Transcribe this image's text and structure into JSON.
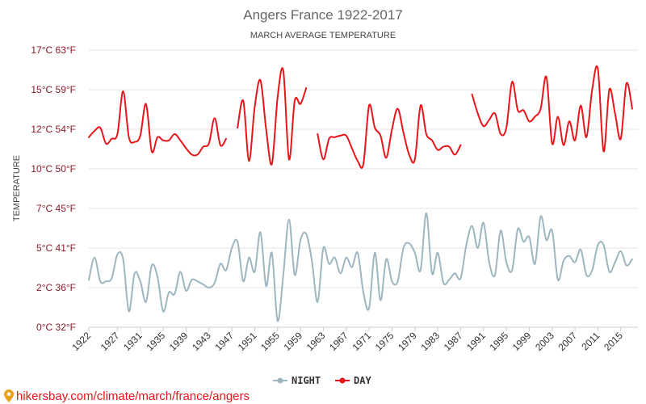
{
  "chart_data": {
    "type": "line",
    "title": "Angers France 1922-2017",
    "subtitle": "MARCH AVERAGE TEMPERATURE",
    "ylabel": "TEMPERATURE",
    "xlabel": "",
    "xlim": [
      1922,
      2018
    ],
    "ylim": [
      0,
      17.5
    ],
    "grid": true,
    "legend_position": "bottom-center",
    "y_ticks": [
      {
        "value": 0,
        "label": "0°C 32°F"
      },
      {
        "value": 2.5,
        "label": "2°C 36°F"
      },
      {
        "value": 5,
        "label": "5°C 41°F"
      },
      {
        "value": 7.5,
        "label": "7°C 45°F"
      },
      {
        "value": 10,
        "label": "10°C 50°F"
      },
      {
        "value": 12.5,
        "label": "12°C 54°F"
      },
      {
        "value": 15,
        "label": "15°C 59°F"
      },
      {
        "value": 17.5,
        "label": "17°C 63°F"
      }
    ],
    "x_ticks": [
      1922,
      1927,
      1931,
      1935,
      1939,
      1943,
      1947,
      1951,
      1955,
      1959,
      1963,
      1967,
      1971,
      1975,
      1979,
      1983,
      1987,
      1991,
      1995,
      1999,
      2003,
      2007,
      2011,
      2015
    ],
    "series": [
      {
        "name": "NIGHT",
        "color": "#9eb6c0",
        "points": [
          [
            1922,
            3.0
          ],
          [
            1923,
            4.4
          ],
          [
            1924,
            2.9
          ],
          [
            1925,
            2.9
          ],
          [
            1926,
            3.1
          ],
          [
            1927,
            4.6
          ],
          [
            1928,
            4.3
          ],
          [
            1929,
            1.0
          ],
          [
            1930,
            3.4
          ],
          [
            1931,
            2.9
          ],
          [
            1932,
            1.6
          ],
          [
            1933,
            3.9
          ],
          [
            1934,
            3.2
          ],
          [
            1935,
            1.0
          ],
          [
            1936,
            2.2
          ],
          [
            1937,
            2.1
          ],
          [
            1938,
            3.5
          ],
          [
            1939,
            2.3
          ],
          [
            1940,
            3.0
          ],
          [
            1941,
            2.9
          ],
          [
            1942,
            2.7
          ],
          [
            1943,
            2.5
          ],
          [
            1944,
            2.8
          ],
          [
            1945,
            4.0
          ],
          [
            1946,
            3.6
          ],
          [
            1947,
            5.0
          ],
          [
            1948,
            5.4
          ],
          [
            1949,
            2.9
          ],
          [
            1950,
            4.4
          ],
          [
            1951,
            3.5
          ],
          [
            1952,
            6.0
          ],
          [
            1953,
            2.6
          ],
          [
            1954,
            4.7
          ],
          [
            1955,
            0.4
          ],
          [
            1956,
            3.3
          ],
          [
            1957,
            6.8
          ],
          [
            1958,
            3.3
          ],
          [
            1959,
            5.5
          ],
          [
            1960,
            5.9
          ],
          [
            1961,
            4.2
          ],
          [
            1962,
            1.6
          ],
          [
            1963,
            5.0
          ],
          [
            1964,
            4.0
          ],
          [
            1965,
            4.4
          ],
          [
            1966,
            3.4
          ],
          [
            1967,
            4.4
          ],
          [
            1968,
            3.8
          ],
          [
            1969,
            4.7
          ],
          [
            1970,
            2.2
          ],
          [
            1971,
            1.2
          ],
          [
            1972,
            4.7
          ],
          [
            1973,
            1.7
          ],
          [
            1974,
            4.3
          ],
          [
            1975,
            2.9
          ],
          [
            1976,
            2.9
          ],
          [
            1977,
            5.0
          ],
          [
            1978,
            5.3
          ],
          [
            1979,
            4.7
          ],
          [
            1980,
            3.6
          ],
          [
            1981,
            7.2
          ],
          [
            1982,
            3.4
          ],
          [
            1983,
            4.7
          ],
          [
            1984,
            2.8
          ],
          [
            1985,
            3.0
          ],
          [
            1986,
            3.4
          ],
          [
            1987,
            3.1
          ],
          [
            1988,
            5.2
          ],
          [
            1989,
            6.4
          ],
          [
            1990,
            5.0
          ],
          [
            1991,
            6.6
          ],
          [
            1992,
            4.1
          ],
          [
            1993,
            3.3
          ],
          [
            1994,
            6.1
          ],
          [
            1995,
            4.1
          ],
          [
            1996,
            3.6
          ],
          [
            1997,
            6.2
          ],
          [
            1998,
            5.4
          ],
          [
            1999,
            5.7
          ],
          [
            2000,
            4.0
          ],
          [
            2001,
            7.0
          ],
          [
            2002,
            5.5
          ],
          [
            2003,
            6.1
          ],
          [
            2004,
            3.0
          ],
          [
            2005,
            4.2
          ],
          [
            2006,
            4.5
          ],
          [
            2007,
            4.1
          ],
          [
            2008,
            4.9
          ],
          [
            2009,
            3.3
          ],
          [
            2010,
            3.6
          ],
          [
            2011,
            5.2
          ],
          [
            2012,
            5.2
          ],
          [
            2013,
            3.5
          ],
          [
            2014,
            4.1
          ],
          [
            2015,
            4.8
          ],
          [
            2016,
            3.9
          ],
          [
            2017,
            4.3
          ]
        ]
      },
      {
        "name": "DAY",
        "color": "#e8161b",
        "points": [
          [
            1922,
            12.0
          ],
          [
            1923,
            12.4
          ],
          [
            1924,
            12.6
          ],
          [
            1925,
            11.6
          ],
          [
            1926,
            11.9
          ],
          [
            1927,
            12.2
          ],
          [
            1928,
            14.9
          ],
          [
            1929,
            12.0
          ],
          [
            1930,
            11.7
          ],
          [
            1931,
            12.1
          ],
          [
            1932,
            14.1
          ],
          [
            1933,
            11.1
          ],
          [
            1934,
            12.0
          ],
          [
            1935,
            11.8
          ],
          [
            1936,
            11.8
          ],
          [
            1937,
            12.2
          ],
          [
            1938,
            11.8
          ],
          [
            1939,
            11.3
          ],
          [
            1940,
            10.9
          ],
          [
            1941,
            10.9
          ],
          [
            1942,
            11.4
          ],
          [
            1943,
            11.6
          ],
          [
            1944,
            13.2
          ],
          [
            1945,
            11.5
          ],
          [
            1946,
            11.9
          ],
          [
            1947,
            null
          ],
          [
            1948,
            12.6
          ],
          [
            1949,
            14.3
          ],
          [
            1950,
            10.5
          ],
          [
            1951,
            13.9
          ],
          [
            1952,
            15.6
          ],
          [
            1953,
            12.5
          ],
          [
            1954,
            10.3
          ],
          [
            1955,
            14.5
          ],
          [
            1956,
            16.2
          ],
          [
            1957,
            10.6
          ],
          [
            1958,
            14.3
          ],
          [
            1959,
            14.1
          ],
          [
            1960,
            15.1
          ],
          [
            1961,
            null
          ],
          [
            1962,
            12.2
          ],
          [
            1963,
            10.6
          ],
          [
            1964,
            11.9
          ],
          [
            1965,
            12.0
          ],
          [
            1966,
            12.1
          ],
          [
            1967,
            12.1
          ],
          [
            1968,
            11.3
          ],
          [
            1969,
            10.5
          ],
          [
            1970,
            10.3
          ],
          [
            1971,
            14.0
          ],
          [
            1972,
            12.6
          ],
          [
            1973,
            12.1
          ],
          [
            1974,
            10.7
          ],
          [
            1975,
            12.5
          ],
          [
            1976,
            13.8
          ],
          [
            1977,
            12.3
          ],
          [
            1978,
            10.9
          ],
          [
            1979,
            10.6
          ],
          [
            1980,
            14.0
          ],
          [
            1981,
            12.2
          ],
          [
            1982,
            11.8
          ],
          [
            1983,
            11.2
          ],
          [
            1984,
            11.4
          ],
          [
            1985,
            11.4
          ],
          [
            1986,
            10.9
          ],
          [
            1987,
            11.5
          ],
          [
            1988,
            null
          ],
          [
            1989,
            14.7
          ],
          [
            1990,
            13.5
          ],
          [
            1991,
            12.7
          ],
          [
            1992,
            13.1
          ],
          [
            1993,
            13.5
          ],
          [
            1994,
            12.2
          ],
          [
            1995,
            12.6
          ],
          [
            1996,
            15.5
          ],
          [
            1997,
            13.7
          ],
          [
            1998,
            13.7
          ],
          [
            1999,
            13.0
          ],
          [
            2000,
            13.3
          ],
          [
            2001,
            13.8
          ],
          [
            2002,
            15.8
          ],
          [
            2003,
            11.6
          ],
          [
            2004,
            13.3
          ],
          [
            2005,
            11.5
          ],
          [
            2006,
            13.0
          ],
          [
            2007,
            11.8
          ],
          [
            2008,
            14.0
          ],
          [
            2009,
            12.0
          ],
          [
            2010,
            15.0
          ],
          [
            2011,
            16.3
          ],
          [
            2012,
            11.1
          ],
          [
            2013,
            15.0
          ],
          [
            2014,
            13.5
          ],
          [
            2015,
            11.9
          ],
          [
            2016,
            15.4
          ],
          [
            2017,
            13.8
          ]
        ]
      }
    ]
  },
  "legend": [
    {
      "label": "NIGHT",
      "color": "#9eb6c0"
    },
    {
      "label": "DAY",
      "color": "#e8161b"
    }
  ],
  "watermark": {
    "text": "hikersbay.com/climate/march/france/angers",
    "color": "#e8161b"
  }
}
